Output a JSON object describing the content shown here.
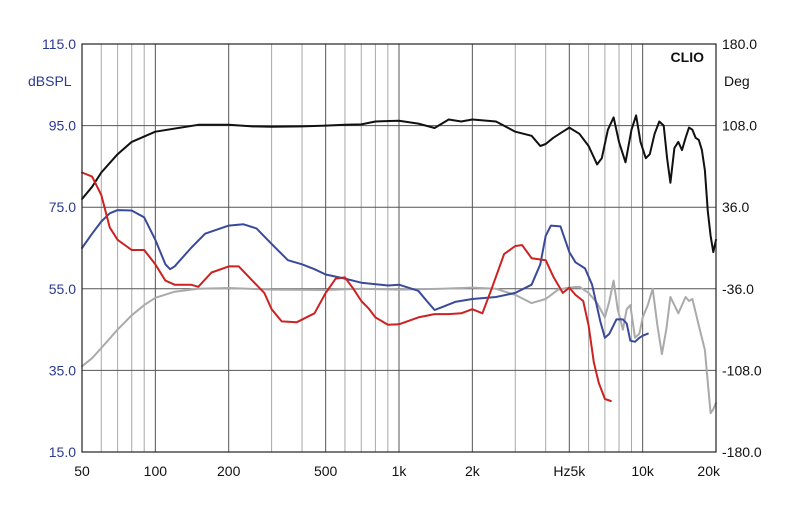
{
  "chart_data": {
    "type": "line",
    "brand": "CLIO",
    "x_scale": "log",
    "xlim": [
      50,
      20000
    ],
    "x_ticks": [
      {
        "value": 50,
        "label": "50"
      },
      {
        "value": 100,
        "label": "100"
      },
      {
        "value": 200,
        "label": "200"
      },
      {
        "value": 500,
        "label": "500"
      },
      {
        "value": 1000,
        "label": "1k"
      },
      {
        "value": 2000,
        "label": "2k"
      },
      {
        "value": 5000,
        "label": "Hz5k"
      },
      {
        "value": 10000,
        "label": "10k"
      },
      {
        "value": 20000,
        "label": "20k"
      }
    ],
    "y_left": {
      "unit": "dBSPL",
      "lim": [
        15,
        115
      ],
      "ticks": [
        {
          "value": 115,
          "label": "115.0"
        },
        {
          "value": 95,
          "label": "95.0"
        },
        {
          "value": 75,
          "label": "75.0"
        },
        {
          "value": 55,
          "label": "55.0"
        },
        {
          "value": 35,
          "label": "35.0"
        },
        {
          "value": 15,
          "label": "15.0"
        }
      ]
    },
    "y_right": {
      "unit": "Deg",
      "lim": [
        -180,
        180
      ],
      "ticks": [
        {
          "value": 180,
          "label": "180.0"
        },
        {
          "value": 108,
          "label": "108.0"
        },
        {
          "value": 36,
          "label": "36.0"
        },
        {
          "value": -36,
          "label": "-36.0"
        },
        {
          "value": -108,
          "label": "-108.0"
        },
        {
          "value": -180,
          "label": "-180.0"
        }
      ]
    },
    "grid": true,
    "series": [
      {
        "color": "#aaaaaa",
        "axis": "left",
        "points": [
          [
            50,
            36
          ],
          [
            55,
            38
          ],
          [
            60,
            40.5
          ],
          [
            70,
            45
          ],
          [
            80,
            48.5
          ],
          [
            90,
            51
          ],
          [
            100,
            52.8
          ],
          [
            120,
            54.3
          ],
          [
            150,
            55
          ],
          [
            200,
            55.2
          ],
          [
            300,
            54.8
          ],
          [
            500,
            54.7
          ],
          [
            700,
            55
          ],
          [
            1000,
            54.8
          ],
          [
            1500,
            55
          ],
          [
            2000,
            55.3
          ],
          [
            2500,
            55
          ],
          [
            3000,
            53.5
          ],
          [
            3500,
            51.5
          ],
          [
            4000,
            52.5
          ],
          [
            4500,
            54.8
          ],
          [
            5000,
            55.3
          ],
          [
            5500,
            55.5
          ],
          [
            6000,
            54
          ],
          [
            6500,
            51.5
          ],
          [
            7000,
            48
          ],
          [
            7300,
            52
          ],
          [
            7600,
            57
          ],
          [
            7900,
            50
          ],
          [
            8300,
            45
          ],
          [
            8600,
            50
          ],
          [
            8900,
            51
          ],
          [
            9300,
            43
          ],
          [
            9700,
            44
          ],
          [
            10000,
            48
          ],
          [
            10500,
            51
          ],
          [
            11000,
            55
          ],
          [
            11500,
            46
          ],
          [
            12000,
            39
          ],
          [
            12500,
            45
          ],
          [
            13000,
            53
          ],
          [
            13500,
            51
          ],
          [
            14000,
            49
          ],
          [
            14500,
            51
          ],
          [
            15000,
            53
          ],
          [
            15500,
            52
          ],
          [
            16000,
            52.5
          ],
          [
            17000,
            46
          ],
          [
            18000,
            40
          ],
          [
            18500,
            32
          ],
          [
            19000,
            24.5
          ],
          [
            19500,
            25.5
          ],
          [
            20000,
            27
          ]
        ]
      },
      {
        "color": "#111111",
        "axis": "left",
        "points": [
          [
            50,
            77
          ],
          [
            55,
            80
          ],
          [
            60,
            83.5
          ],
          [
            70,
            88
          ],
          [
            80,
            91
          ],
          [
            100,
            93.5
          ],
          [
            150,
            95.2
          ],
          [
            200,
            95.2
          ],
          [
            250,
            94.8
          ],
          [
            300,
            94.7
          ],
          [
            400,
            94.8
          ],
          [
            500,
            95
          ],
          [
            600,
            95.2
          ],
          [
            700,
            95.3
          ],
          [
            800,
            96
          ],
          [
            1000,
            96.2
          ],
          [
            1200,
            95.5
          ],
          [
            1400,
            94.4
          ],
          [
            1600,
            96.5
          ],
          [
            1800,
            96
          ],
          [
            2000,
            96.5
          ],
          [
            2500,
            96
          ],
          [
            3000,
            93.5
          ],
          [
            3500,
            92.5
          ],
          [
            3800,
            90
          ],
          [
            4000,
            90.5
          ],
          [
            4300,
            92
          ],
          [
            4700,
            93.5
          ],
          [
            5000,
            94.5
          ],
          [
            5500,
            93
          ],
          [
            6000,
            90
          ],
          [
            6500,
            85.5
          ],
          [
            6800,
            87
          ],
          [
            7200,
            94
          ],
          [
            7600,
            97
          ],
          [
            8000,
            91
          ],
          [
            8500,
            86
          ],
          [
            9000,
            94
          ],
          [
            9400,
            97.5
          ],
          [
            9800,
            91
          ],
          [
            10300,
            87
          ],
          [
            10700,
            88
          ],
          [
            11200,
            93
          ],
          [
            11700,
            96
          ],
          [
            12200,
            95
          ],
          [
            12600,
            87
          ],
          [
            13000,
            81
          ],
          [
            13500,
            89.5
          ],
          [
            14000,
            91
          ],
          [
            14500,
            89
          ],
          [
            15000,
            92
          ],
          [
            15500,
            94.5
          ],
          [
            16000,
            94
          ],
          [
            16500,
            92
          ],
          [
            17000,
            91.5
          ],
          [
            17500,
            89
          ],
          [
            18000,
            84
          ],
          [
            18500,
            74
          ],
          [
            19000,
            68
          ],
          [
            19500,
            64
          ],
          [
            20000,
            67
          ]
        ]
      },
      {
        "color": "#3a4a9a",
        "axis": "left",
        "points": [
          [
            50,
            65
          ],
          [
            55,
            68.5
          ],
          [
            60,
            71.5
          ],
          [
            65,
            73.5
          ],
          [
            70,
            74.3
          ],
          [
            80,
            74.2
          ],
          [
            90,
            72.5
          ],
          [
            100,
            67
          ],
          [
            110,
            61
          ],
          [
            115,
            59.8
          ],
          [
            120,
            60.5
          ],
          [
            140,
            65
          ],
          [
            160,
            68.5
          ],
          [
            200,
            70.5
          ],
          [
            230,
            70.8
          ],
          [
            260,
            69.8
          ],
          [
            300,
            66
          ],
          [
            350,
            62
          ],
          [
            400,
            61
          ],
          [
            450,
            59.8
          ],
          [
            500,
            58.5
          ],
          [
            600,
            57.5
          ],
          [
            700,
            56.5
          ],
          [
            900,
            55.8
          ],
          [
            1000,
            56
          ],
          [
            1200,
            54.5
          ],
          [
            1300,
            52
          ],
          [
            1400,
            49.8
          ],
          [
            1500,
            50.5
          ],
          [
            1700,
            51.8
          ],
          [
            2000,
            52.5
          ],
          [
            2500,
            53
          ],
          [
            3000,
            54
          ],
          [
            3500,
            56
          ],
          [
            3800,
            61
          ],
          [
            4000,
            68
          ],
          [
            4200,
            70.5
          ],
          [
            4600,
            70.3
          ],
          [
            5000,
            64
          ],
          [
            5300,
            61.5
          ],
          [
            5800,
            60
          ],
          [
            6200,
            56
          ],
          [
            6700,
            47
          ],
          [
            7000,
            43
          ],
          [
            7300,
            44
          ],
          [
            7800,
            47.5
          ],
          [
            8300,
            47.5
          ],
          [
            8600,
            46.5
          ],
          [
            8900,
            42.3
          ],
          [
            9300,
            42
          ],
          [
            9700,
            43
          ],
          [
            10000,
            43.5
          ],
          [
            10500,
            44
          ]
        ]
      },
      {
        "color": "#cc2222",
        "axis": "left",
        "points": [
          [
            50,
            83.5
          ],
          [
            55,
            82.5
          ],
          [
            60,
            78
          ],
          [
            65,
            70
          ],
          [
            70,
            67
          ],
          [
            80,
            64.5
          ],
          [
            90,
            64.5
          ],
          [
            100,
            61
          ],
          [
            110,
            57
          ],
          [
            120,
            56
          ],
          [
            140,
            56
          ],
          [
            150,
            55.5
          ],
          [
            170,
            59
          ],
          [
            200,
            60.5
          ],
          [
            220,
            60.5
          ],
          [
            250,
            57
          ],
          [
            280,
            54
          ],
          [
            300,
            50
          ],
          [
            330,
            47
          ],
          [
            380,
            46.8
          ],
          [
            450,
            49
          ],
          [
            500,
            54
          ],
          [
            550,
            57.5
          ],
          [
            600,
            57.8
          ],
          [
            650,
            55
          ],
          [
            700,
            52
          ],
          [
            750,
            50.2
          ],
          [
            800,
            48
          ],
          [
            900,
            46.2
          ],
          [
            1000,
            46.3
          ],
          [
            1200,
            48
          ],
          [
            1400,
            48.8
          ],
          [
            1600,
            48.8
          ],
          [
            1800,
            49
          ],
          [
            2000,
            50
          ],
          [
            2200,
            49
          ],
          [
            2400,
            55
          ],
          [
            2700,
            63.5
          ],
          [
            3000,
            65.5
          ],
          [
            3200,
            65.7
          ],
          [
            3500,
            62.5
          ],
          [
            4000,
            62
          ],
          [
            4300,
            58
          ],
          [
            4700,
            54
          ],
          [
            5000,
            55.3
          ],
          [
            5300,
            53.5
          ],
          [
            5700,
            52
          ],
          [
            6000,
            46
          ],
          [
            6300,
            37
          ],
          [
            6600,
            32
          ],
          [
            7000,
            28
          ],
          [
            7400,
            27.5
          ]
        ]
      }
    ]
  }
}
